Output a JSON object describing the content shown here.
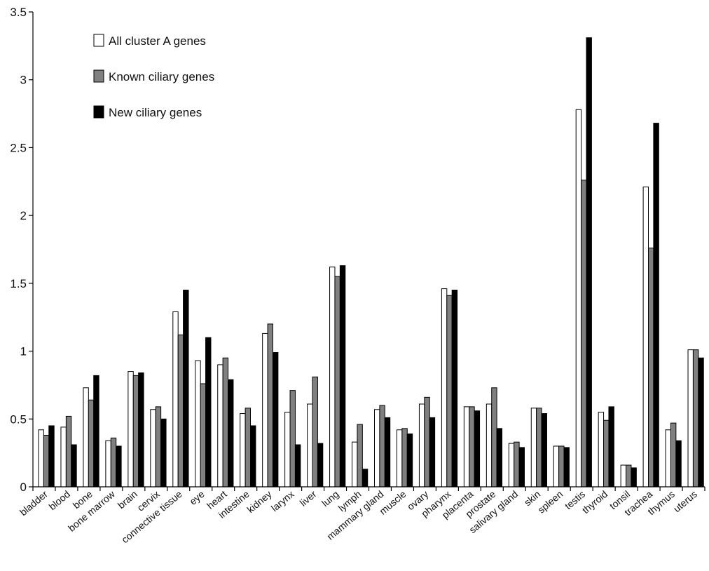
{
  "chart_data": {
    "type": "bar",
    "title": "",
    "xlabel": "",
    "ylabel": "",
    "ylim": [
      0,
      3.5
    ],
    "yticks": [
      "0",
      "0.5",
      "1",
      "1.5",
      "2",
      "2.5",
      "3",
      "3.5"
    ],
    "grid": false,
    "legend_position": "top-left",
    "categories": [
      "bladder",
      "blood",
      "bone",
      "bone marrow",
      "brain",
      "cervix",
      "connective tissue",
      "eye",
      "heart",
      "intestine",
      "kidney",
      "larynx",
      "liver",
      "lung",
      "lymph",
      "mammary gland",
      "muscle",
      "ovary",
      "pharynx",
      "placenta",
      "prostate",
      "salivary gland",
      "skin",
      "spleen",
      "testis",
      "thyroid",
      "tonsil",
      "trachea",
      "thymus",
      "uterus"
    ],
    "series": [
      {
        "name": "All cluster A genes",
        "color": "#ffffff",
        "values": [
          0.42,
          0.44,
          0.73,
          0.34,
          0.85,
          0.57,
          1.29,
          0.93,
          0.9,
          0.54,
          1.13,
          0.55,
          0.61,
          1.62,
          0.33,
          0.57,
          0.42,
          0.61,
          1.46,
          0.59,
          0.61,
          0.32,
          0.58,
          0.3,
          2.78,
          0.55,
          0.16,
          2.21,
          0.42,
          1.01
        ]
      },
      {
        "name": "Known ciliary genes",
        "color": "#808080",
        "values": [
          0.38,
          0.52,
          0.64,
          0.36,
          0.82,
          0.59,
          1.12,
          0.76,
          0.95,
          0.58,
          1.2,
          0.71,
          0.81,
          1.55,
          0.46,
          0.6,
          0.43,
          0.66,
          1.41,
          0.59,
          0.73,
          0.33,
          0.58,
          0.3,
          2.26,
          0.49,
          0.16,
          1.76,
          0.47,
          1.01
        ]
      },
      {
        "name": "New ciliary genes",
        "color": "#000000",
        "values": [
          0.45,
          0.31,
          0.82,
          0.3,
          0.84,
          0.5,
          1.45,
          1.1,
          0.79,
          0.45,
          0.99,
          0.31,
          0.32,
          1.63,
          0.13,
          0.51,
          0.39,
          0.51,
          1.45,
          0.56,
          0.43,
          0.29,
          0.54,
          0.29,
          3.31,
          0.59,
          0.14,
          2.68,
          0.34,
          0.95
        ]
      }
    ]
  }
}
